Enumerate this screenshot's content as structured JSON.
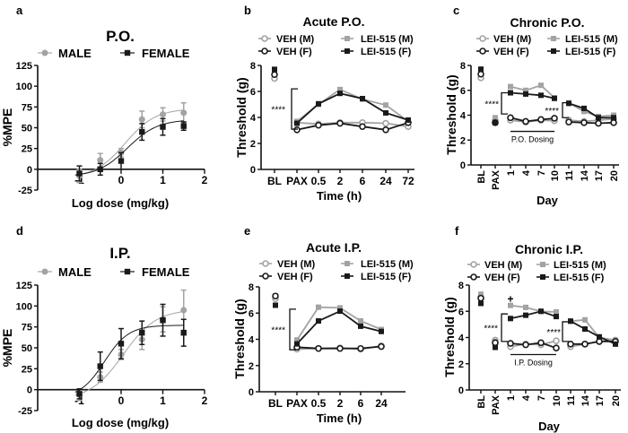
{
  "colors": {
    "male": "#a3a3a3",
    "female": "#1a1a1a"
  },
  "chart_data": [
    {
      "id": "a",
      "panel_label": "a",
      "type": "scatter",
      "title": "P.O.",
      "xlabel": "Log dose (mg/kg)",
      "ylabel": "%MPE",
      "xlim": [
        -2,
        2
      ],
      "ylim": [
        -25,
        125
      ],
      "xticks": [
        -1,
        0,
        1,
        2
      ],
      "yticks": [
        -25,
        0,
        25,
        50,
        75,
        100,
        125
      ],
      "legend": [
        "MALE",
        "FEMALE"
      ],
      "series": [
        {
          "name": "MALE",
          "sex": "male",
          "x": [
            -1,
            -0.5,
            0,
            0.5,
            1,
            1.5
          ],
          "y": [
            -8,
            11,
            20,
            60,
            66,
            68
          ],
          "sem": [
            8,
            8,
            5,
            10,
            8,
            12
          ],
          "fit": {
            "bottom": -10,
            "top": 73,
            "logEC50": 0.1,
            "hill": 1.2
          }
        },
        {
          "name": "FEMALE",
          "sex": "female",
          "x": [
            -1,
            -0.5,
            0,
            0.5,
            1,
            1.5
          ],
          "y": [
            -5,
            0,
            10,
            45,
            51,
            52
          ],
          "sem": [
            9,
            7,
            10,
            10,
            10,
            5
          ],
          "fit": {
            "bottom": -9,
            "top": 60,
            "logEC50": 0.15,
            "hill": 1.2
          }
        }
      ]
    },
    {
      "id": "b",
      "panel_label": "b",
      "type": "line",
      "title": "Acute P.O.",
      "xlabel": "Time (h)",
      "ylabel": "Threshold (g)",
      "ylim": [
        0,
        8
      ],
      "yticks": [
        0,
        2,
        4,
        6,
        8
      ],
      "categories": [
        "BL",
        "PAX",
        "0.5",
        "2",
        "6",
        "24",
        "72"
      ],
      "segments": [
        [
          1,
          6
        ]
      ],
      "series": [
        {
          "name": "VEH (M)",
          "sex": "male",
          "marker": "circle",
          "values": [
            7.0,
            3.6,
            3.5,
            3.6,
            3.6,
            3.55,
            3.3
          ]
        },
        {
          "name": "LEI-515 (M)",
          "sex": "male",
          "marker": "square",
          "values": [
            7.4,
            3.7,
            5.0,
            6.15,
            5.4,
            4.95,
            3.7
          ]
        },
        {
          "name": "VEH (F)",
          "sex": "female",
          "marker": "circle",
          "values": [
            7.3,
            3.05,
            3.4,
            3.55,
            3.3,
            3.05,
            3.6
          ]
        },
        {
          "name": "LEI-515 (F)",
          "sex": "female",
          "marker": "square",
          "values": [
            7.7,
            3.55,
            5.05,
            5.85,
            5.45,
            4.35,
            3.8
          ]
        }
      ],
      "annotations": [
        {
          "text": "****",
          "kind": "bracket",
          "range": [
            3.1,
            6.2
          ]
        }
      ]
    },
    {
      "id": "c",
      "panel_label": "c",
      "type": "line",
      "title": "Chronic P.O.",
      "xlabel": "Day",
      "ylabel": "Threshold (g)",
      "ylim": [
        0,
        8
      ],
      "yticks": [
        0,
        2,
        4,
        6,
        8
      ],
      "categories": [
        "BL",
        "PAX",
        "1",
        "4",
        "7",
        "10",
        "11",
        "14",
        "17",
        "20"
      ],
      "segments": [
        [
          2,
          5
        ],
        [
          6,
          9
        ]
      ],
      "series": [
        {
          "name": "VEH (M)",
          "sex": "male",
          "marker": "circle",
          "values": [
            7.0,
            3.6,
            3.6,
            3.45,
            3.6,
            3.55,
            3.6,
            3.5,
            3.6,
            3.7
          ]
        },
        {
          "name": "LEI-515 (M)",
          "sex": "male",
          "marker": "square",
          "values": [
            7.4,
            3.8,
            6.3,
            6.0,
            6.4,
            5.4,
            5.0,
            4.3,
            3.9,
            4.0
          ]
        },
        {
          "name": "VEH (F)",
          "sex": "female",
          "marker": "circle",
          "values": [
            7.3,
            3.4,
            3.8,
            3.5,
            3.65,
            3.75,
            3.45,
            3.4,
            3.35,
            3.4
          ]
        },
        {
          "name": "LEI-515 (F)",
          "sex": "female",
          "marker": "square",
          "values": [
            7.7,
            3.4,
            5.8,
            5.7,
            5.6,
            5.35,
            4.95,
            4.55,
            3.8,
            3.8
          ]
        }
      ],
      "annotations": [
        {
          "text": "****",
          "kind": "bracket",
          "range": [
            4.1,
            5.8
          ]
        },
        {
          "text": "****",
          "kind": "bracket",
          "range": [
            3.8,
            5.0
          ]
        },
        {
          "text": "P.O. Dosing",
          "kind": "dosing",
          "from": "1",
          "to": "10",
          "level": 2.7
        }
      ]
    },
    {
      "id": "d",
      "panel_label": "d",
      "type": "scatter",
      "title": "I.P.",
      "xlabel": "Log dose (mg/kg)",
      "ylabel": "%MPE",
      "xlim": [
        -2,
        2
      ],
      "ylim": [
        -25,
        125
      ],
      "xticks": [
        -1,
        0,
        1,
        2
      ],
      "yticks": [
        -25,
        0,
        25,
        50,
        75,
        100,
        125
      ],
      "legend": [
        "MALE",
        "FEMALE"
      ],
      "series": [
        {
          "name": "MALE",
          "sex": "male",
          "x": [
            -1,
            -0.5,
            0,
            0.5,
            1,
            1.5
          ],
          "y": [
            -6,
            15,
            42,
            60,
            84,
            95
          ],
          "sem": [
            7,
            6,
            6,
            12,
            15,
            24
          ],
          "fit": {
            "bottom": -12,
            "top": 96,
            "logEC50": 0.05,
            "hill": 1.1
          }
        },
        {
          "name": "FEMALE",
          "sex": "female",
          "x": [
            -1,
            -0.5,
            0,
            0.5,
            1,
            1.5
          ],
          "y": [
            -5,
            28,
            55,
            68,
            83,
            68
          ],
          "sem": [
            6,
            17,
            18,
            14,
            19,
            16
          ],
          "fit": {
            "bottom": -10,
            "top": 77,
            "logEC50": -0.4,
            "hill": 1.5
          }
        }
      ]
    },
    {
      "id": "e",
      "panel_label": "e",
      "type": "line",
      "title": "Acute I.P.",
      "xlabel": "Time (h)",
      "ylabel": "Threshold (g)",
      "ylim": [
        0,
        8
      ],
      "yticks": [
        0,
        2,
        4,
        6,
        8
      ],
      "categories": [
        "BL",
        "PAX",
        "0.5",
        "2",
        "6",
        "24"
      ],
      "segments": [
        [
          1,
          5
        ]
      ],
      "series": [
        {
          "name": "VEH (M)",
          "sex": "male",
          "marker": "circle",
          "values": [
            7.1,
            3.25,
            3.3,
            3.35,
            3.25,
            3.5
          ]
        },
        {
          "name": "LEI-515 (M)",
          "sex": "male",
          "marker": "square",
          "values": [
            7.3,
            3.95,
            6.45,
            6.4,
            5.4,
            4.75
          ]
        },
        {
          "name": "VEH (F)",
          "sex": "female",
          "marker": "circle",
          "values": [
            7.3,
            3.4,
            3.3,
            3.3,
            3.3,
            3.45
          ]
        },
        {
          "name": "LEI-515 (F)",
          "sex": "female",
          "marker": "square",
          "values": [
            6.6,
            3.65,
            5.4,
            6.15,
            5.0,
            4.6
          ]
        }
      ],
      "annotations": [
        {
          "text": "****",
          "kind": "bracket",
          "range": [
            3.2,
            6.3
          ]
        }
      ]
    },
    {
      "id": "f",
      "panel_label": "f",
      "type": "line",
      "title": "Chronic I.P.",
      "xlabel": "Day",
      "ylabel": "Threshold (g)",
      "ylim": [
        0,
        8
      ],
      "yticks": [
        0,
        2,
        4,
        6,
        8
      ],
      "categories": [
        "BL",
        "PAX",
        "1",
        "4",
        "7",
        "10",
        "11",
        "14",
        "17",
        "20"
      ],
      "segments": [
        [
          2,
          5
        ],
        [
          6,
          9
        ]
      ],
      "series": [
        {
          "name": "VEH (M)",
          "sex": "male",
          "marker": "circle",
          "values": [
            7.1,
            3.8,
            3.3,
            3.5,
            3.45,
            3.75,
            3.3,
            3.5,
            3.7,
            3.8
          ]
        },
        {
          "name": "LEI-515 (M)",
          "sex": "male",
          "marker": "square",
          "values": [
            7.3,
            3.7,
            6.45,
            6.3,
            6.0,
            5.95,
            5.25,
            5.35,
            4.0,
            3.8
          ]
        },
        {
          "name": "VEH (F)",
          "sex": "female",
          "marker": "circle",
          "values": [
            7.0,
            3.6,
            3.55,
            3.45,
            3.6,
            3.2,
            3.5,
            3.5,
            3.7,
            3.7
          ]
        },
        {
          "name": "LEI-515 (F)",
          "sex": "female",
          "marker": "square",
          "values": [
            6.6,
            3.25,
            5.45,
            5.7,
            6.0,
            5.6,
            5.25,
            4.65,
            4.05,
            3.5
          ]
        }
      ],
      "annotations": [
        {
          "text": "****",
          "kind": "bracket",
          "range": [
            3.7,
            5.8
          ]
        },
        {
          "text": "****",
          "kind": "bracket",
          "range": [
            3.7,
            5.2
          ]
        },
        {
          "text": "+",
          "kind": "mark",
          "at": "1",
          "level": 6.95
        },
        {
          "text": "I.P. Dosing",
          "kind": "dosing",
          "from": "1",
          "to": "10",
          "level": 2.7
        }
      ]
    }
  ]
}
